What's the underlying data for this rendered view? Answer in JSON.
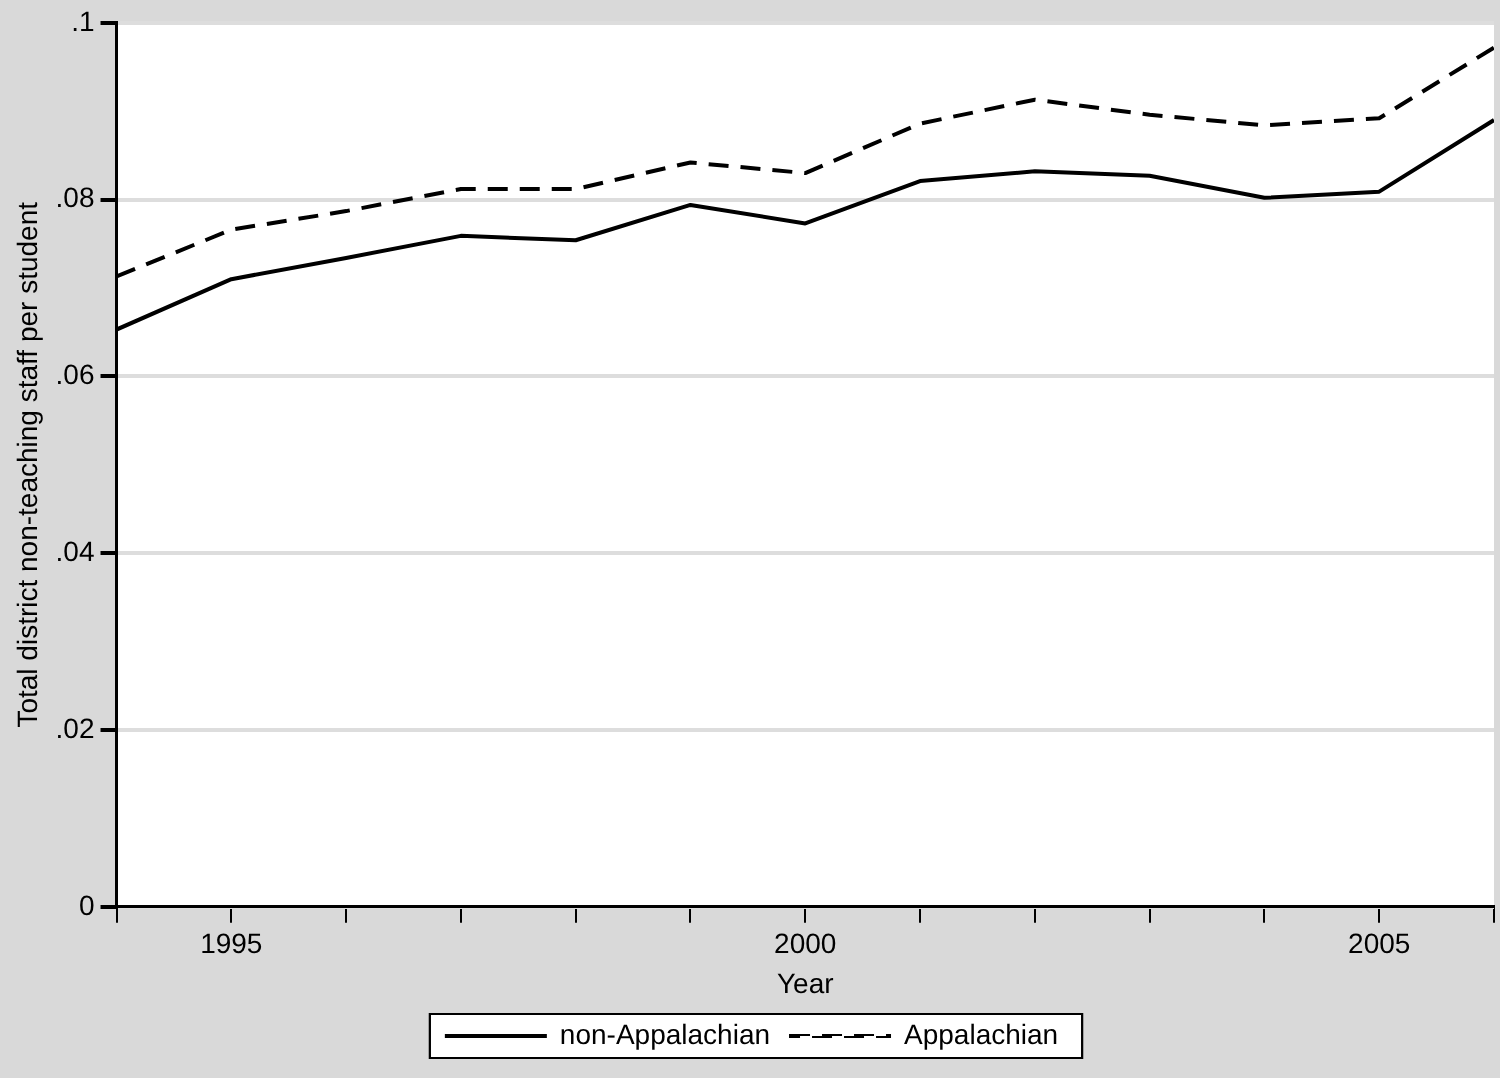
{
  "chart_data": {
    "type": "line",
    "xlabel": "Year",
    "ylabel": "Total district non-teaching staff per student",
    "x": [
      1994,
      1995,
      1996,
      1997,
      1998,
      1999,
      2000,
      2001,
      2002,
      2003,
      2004,
      2005,
      2006
    ],
    "series": [
      {
        "name": "non-Appalachian",
        "color": "#000000",
        "line_style": "solid",
        "values": [
          0.0653,
          0.071,
          0.0734,
          0.0759,
          0.0754,
          0.0794,
          0.0773,
          0.0821,
          0.0832,
          0.0827,
          0.0802,
          0.0809,
          0.089
        ]
      },
      {
        "name": "Appalachian",
        "color": "#000000",
        "line_style": "dashed",
        "values": [
          0.0713,
          0.0766,
          0.0787,
          0.0812,
          0.0812,
          0.0842,
          0.083,
          0.0886,
          0.0913,
          0.0896,
          0.0884,
          0.0892,
          0.0972
        ]
      }
    ],
    "xlim": [
      1994,
      2006
    ],
    "xticks": [
      {
        "value": 1994,
        "label": null
      },
      1995,
      {
        "value": 1996,
        "label": null
      },
      {
        "value": 1997,
        "label": null
      },
      {
        "value": 1998,
        "label": null
      },
      {
        "value": 1999,
        "label": null
      },
      2000,
      {
        "value": 2001,
        "label": null
      },
      {
        "value": 2002,
        "label": null
      },
      {
        "value": 2003,
        "label": null
      },
      {
        "value": 2004,
        "label": null
      },
      2005,
      {
        "value": 2006,
        "label": null
      }
    ],
    "ylim": [
      0,
      0.1
    ],
    "yticks": [
      0,
      {
        "value": 0.02,
        "label": ".02"
      },
      {
        "value": 0.04,
        "label": ".04"
      },
      {
        "value": 0.06,
        "label": ".06"
      },
      {
        "value": 0.08,
        "label": ".08"
      },
      {
        "value": 0.1,
        "label": ".1"
      }
    ],
    "grid": "y",
    "legend": "bottom",
    "marker": "none"
  }
}
